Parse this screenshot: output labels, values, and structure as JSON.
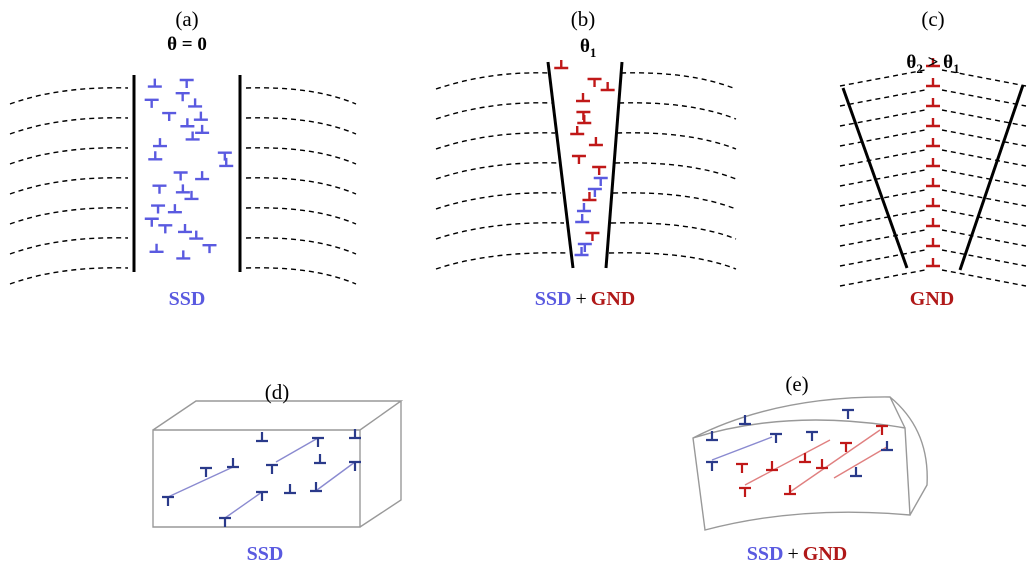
{
  "panels": [
    {
      "label": "(a)",
      "angle": {
        "text": "θ = 0"
      },
      "caption": [
        "SSD"
      ]
    },
    {
      "label": "(b)",
      "angle": {
        "base": "θ",
        "sub": "1"
      },
      "caption": [
        "SSD",
        "+",
        "GND"
      ]
    },
    {
      "label": "(c)",
      "angle": {
        "base": "θ",
        "sub": "2",
        "rel": " > ",
        "base2": "θ",
        "sub2": "1"
      },
      "caption": [
        "GND"
      ]
    },
    {
      "label": "(d)",
      "caption": [
        "SSD"
      ]
    },
    {
      "label": "(e)",
      "caption": [
        "SSD",
        "+",
        "GND"
      ]
    }
  ]
}
